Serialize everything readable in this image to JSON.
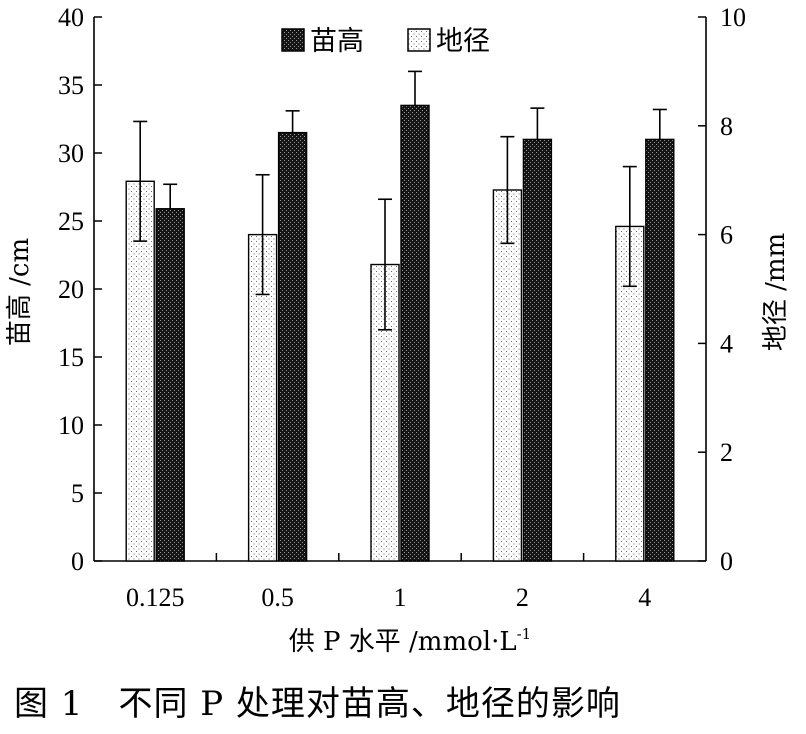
{
  "caption": "图 1　不同 P 处理对苗高、地径的影响",
  "chart_data": {
    "type": "bar",
    "categories": [
      "0.125",
      "0.5",
      "1",
      "2",
      "4"
    ],
    "xlabel": "供 P 水平 /mmol·L",
    "xlabel_sup": "-1",
    "ylabel_left": "苗高 /cm",
    "ylabel_right": "地径 /mm",
    "ylim_left": [
      0,
      40
    ],
    "yticks_left": [
      0,
      5,
      10,
      15,
      20,
      25,
      30,
      35,
      40
    ],
    "ylim_right": [
      0,
      10
    ],
    "yticks_right": [
      0,
      2,
      4,
      6,
      8,
      10
    ],
    "legend_position": "top-center",
    "grid": false,
    "series": [
      {
        "name": "苗高",
        "axis": "left",
        "pattern": "dense-dots-dark",
        "values": [
          25.9,
          31.5,
          33.5,
          31.0,
          31.0
        ],
        "errors": [
          1.8,
          1.6,
          2.5,
          2.3,
          2.2
        ]
      },
      {
        "name": "地径",
        "axis": "right",
        "pattern": "sparse-dots-light",
        "values": [
          6.98,
          6.0,
          5.45,
          6.82,
          6.15
        ],
        "errors": [
          1.1,
          1.1,
          1.2,
          0.98,
          1.1
        ]
      }
    ]
  }
}
